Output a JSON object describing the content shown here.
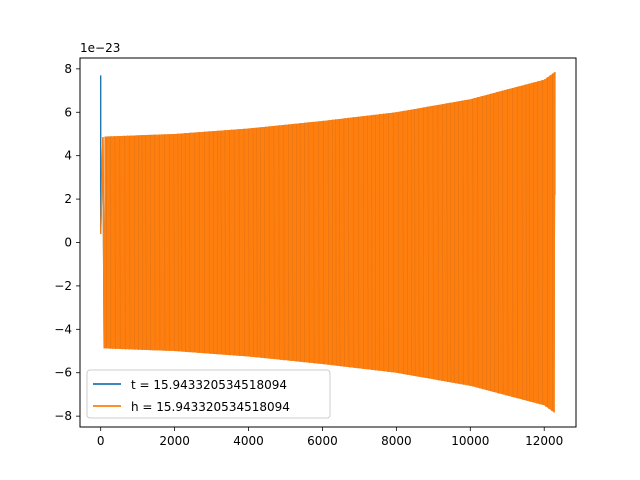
{
  "chart_data": {
    "type": "line",
    "title": "",
    "xlabel": "",
    "ylabel": "",
    "y_scale_label": "1e−23",
    "xlim": [
      -560,
      12860
    ],
    "ylim": [
      -8.5,
      8.5
    ],
    "x_ticks": [
      0,
      2000,
      4000,
      6000,
      8000,
      10000,
      12000
    ],
    "x_tick_labels": [
      "0",
      "2000",
      "4000",
      "6000",
      "8000",
      "10000",
      "12000"
    ],
    "y_ticks": [
      -8,
      -6,
      -4,
      -2,
      0,
      2,
      4,
      6,
      8
    ],
    "y_tick_labels": [
      "−8",
      "−6",
      "−4",
      "−2",
      "0",
      "2",
      "4",
      "6",
      "8"
    ],
    "grid": false,
    "legend_position": "lower-left",
    "series": [
      {
        "name": "t = 15.943320534518094",
        "color": "#1f77b4",
        "description_points": {
          "x": [
            0,
            0,
            50,
            100,
            2000,
            4000,
            6000,
            8000,
            10000,
            12000,
            12288
          ],
          "y": [
            0.4,
            7.7,
            4.85,
            4.88,
            5.0,
            5.25,
            5.6,
            6.0,
            6.6,
            7.5,
            7.85
          ]
        }
      },
      {
        "name": "h = 15.943320534518094",
        "color": "#ff7f0e",
        "description_points": {
          "x": [
            0,
            50,
            100,
            2000,
            4000,
            6000,
            8000,
            10000,
            12000,
            12288
          ],
          "y": [
            0.4,
            4.85,
            4.88,
            5.0,
            5.25,
            5.6,
            6.0,
            6.6,
            7.5,
            7.85
          ]
        }
      }
    ],
    "envelope": {
      "x": [
        100,
        2000,
        4000,
        6000,
        8000,
        10000,
        12000,
        12288
      ],
      "upper": [
        4.88,
        5.0,
        5.25,
        5.6,
        6.0,
        6.6,
        7.5,
        7.85
      ],
      "lower": [
        -4.88,
        -5.0,
        -5.25,
        -5.6,
        -6.0,
        -6.6,
        -7.5,
        -7.85
      ]
    },
    "x_end": 12288,
    "end_value": 2.2
  }
}
